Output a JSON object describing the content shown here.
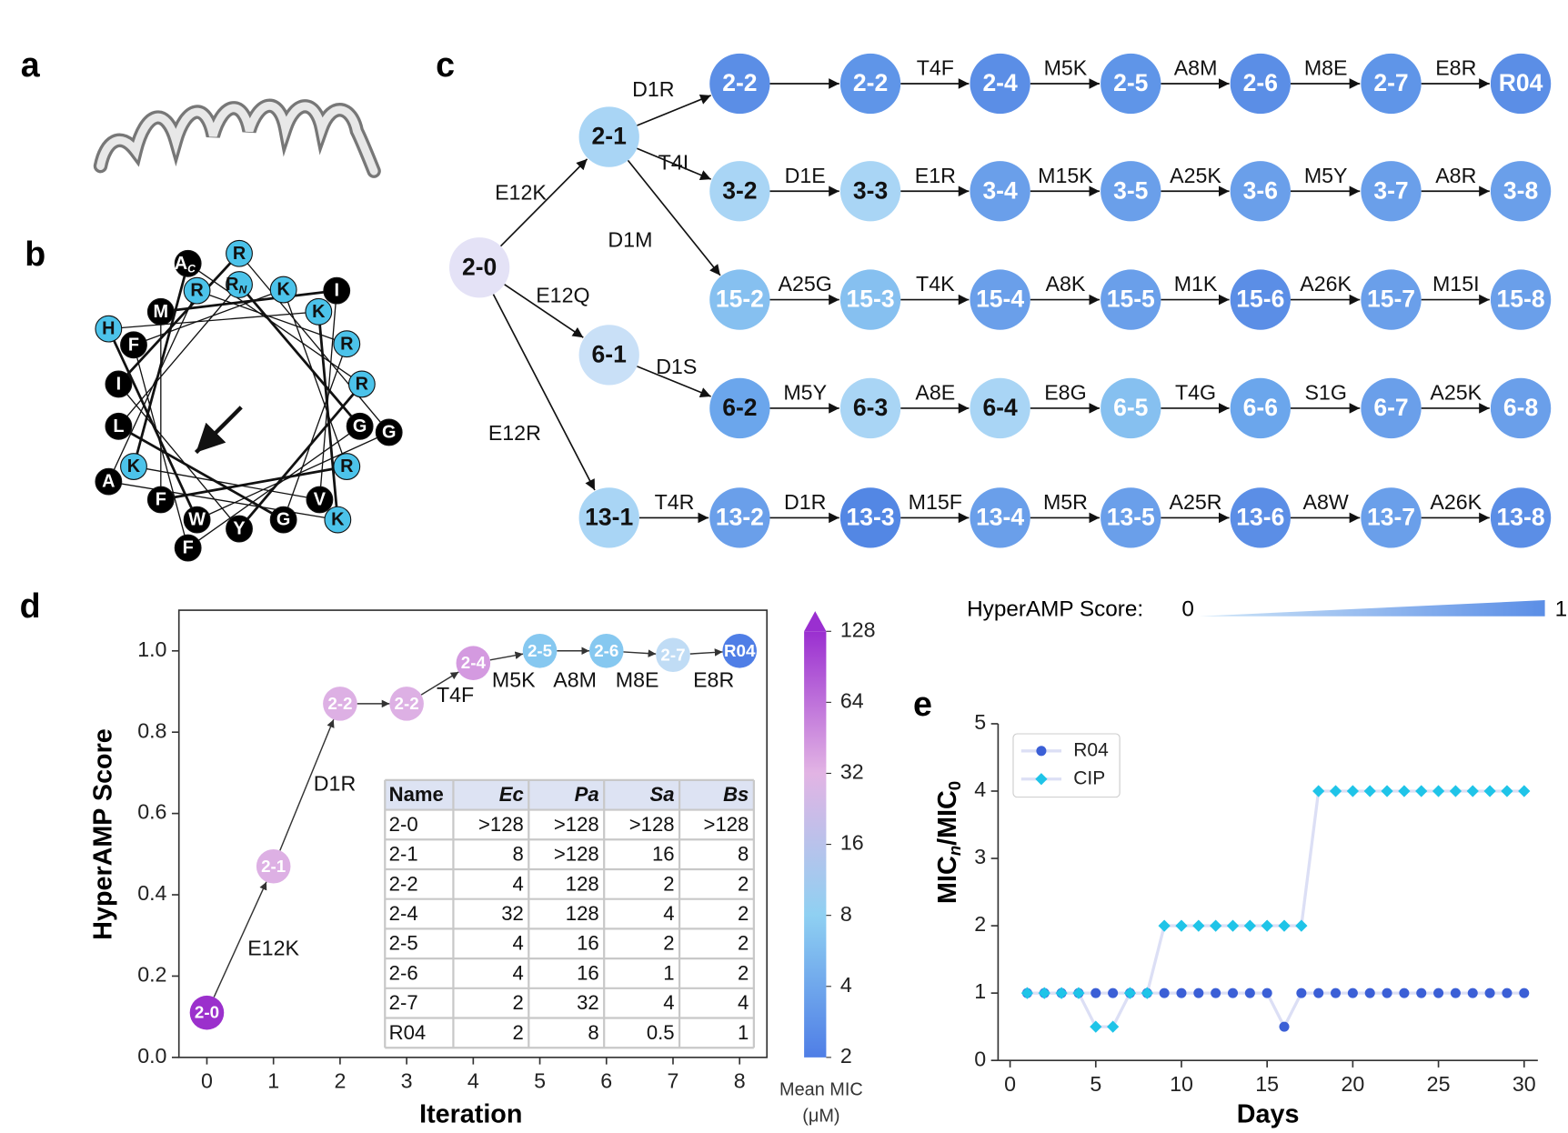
{
  "panel_labels": [
    "a",
    "b",
    "c",
    "d",
    "e"
  ],
  "helical_wheel": {
    "residues": [
      {
        "text": "A",
        "sub": "C",
        "color": "#000000"
      },
      {
        "text": "R",
        "color": "#4cc3ea"
      },
      {
        "text": "R",
        "sub": "N",
        "color": "#4cc3ea"
      },
      {
        "text": "R",
        "color": "#4cc3ea"
      },
      {
        "text": "K",
        "color": "#4cc3ea"
      },
      {
        "text": "I",
        "color": "#000000"
      },
      {
        "text": "M",
        "color": "#000000"
      },
      {
        "text": "K",
        "color": "#4cc3ea"
      },
      {
        "text": "H",
        "color": "#4cc3ea"
      },
      {
        "text": "F",
        "color": "#000000"
      },
      {
        "text": "R",
        "color": "#4cc3ea"
      },
      {
        "text": "R",
        "color": "#4cc3ea"
      },
      {
        "text": "I",
        "color": "#000000"
      },
      {
        "text": "L",
        "color": "#000000"
      },
      {
        "text": "G",
        "color": "#000000"
      },
      {
        "text": "G",
        "color": "#000000"
      },
      {
        "text": "R",
        "color": "#4cc3ea"
      },
      {
        "text": "K",
        "color": "#4cc3ea"
      },
      {
        "text": "A",
        "color": "#000000"
      },
      {
        "text": "F",
        "color": "#000000"
      },
      {
        "text": "V",
        "color": "#000000"
      },
      {
        "text": "K",
        "color": "#4cc3ea"
      },
      {
        "text": "W",
        "color": "#000000"
      },
      {
        "text": "Y",
        "color": "#000000"
      },
      {
        "text": "G",
        "color": "#000000"
      },
      {
        "text": "F",
        "color": "#000000"
      }
    ]
  },
  "lineage": {
    "nodes": [
      {
        "label": "2-0",
        "color": "#e4e2f6",
        "label_color": "#111111"
      },
      {
        "label": "2-1",
        "color": "#a9d5f5",
        "label_color": "#111111"
      },
      {
        "label": "6-1",
        "color": "#c9e0f7",
        "label_color": "#111111"
      },
      {
        "label": "13-1",
        "color": "#a9d5f5",
        "label_color": "#111111"
      },
      {
        "label": "2-2",
        "color": "#5b8ee6",
        "label_color": "#ffffff"
      },
      {
        "label": "2-2",
        "color": "#5f95e8",
        "label_color": "#ffffff"
      },
      {
        "label": "2-4",
        "color": "#5b8ee6",
        "label_color": "#ffffff"
      },
      {
        "label": "2-5",
        "color": "#5f95e8",
        "label_color": "#ffffff"
      },
      {
        "label": "2-6",
        "color": "#5b8ee6",
        "label_color": "#ffffff"
      },
      {
        "label": "2-7",
        "color": "#5f95e8",
        "label_color": "#ffffff"
      },
      {
        "label": "R04",
        "color": "#5b8ee6",
        "label_color": "#ffffff"
      },
      {
        "label": "3-2",
        "color": "#a9d5f5",
        "label_color": "#111111"
      },
      {
        "label": "3-3",
        "color": "#a9d5f5",
        "label_color": "#111111"
      },
      {
        "label": "3-4",
        "color": "#6a9fea",
        "label_color": "#ffffff"
      },
      {
        "label": "3-5",
        "color": "#6a9fea",
        "label_color": "#ffffff"
      },
      {
        "label": "3-6",
        "color": "#6a9fea",
        "label_color": "#ffffff"
      },
      {
        "label": "3-7",
        "color": "#6a9fea",
        "label_color": "#ffffff"
      },
      {
        "label": "3-8",
        "color": "#6a9fea",
        "label_color": "#ffffff"
      },
      {
        "label": "15-2",
        "color": "#86c0f0",
        "label_color": "#ffffff"
      },
      {
        "label": "15-3",
        "color": "#86c0f0",
        "label_color": "#ffffff"
      },
      {
        "label": "15-4",
        "color": "#6a9fea",
        "label_color": "#ffffff"
      },
      {
        "label": "15-5",
        "color": "#6a9fea",
        "label_color": "#ffffff"
      },
      {
        "label": "15-6",
        "color": "#5b8ee6",
        "label_color": "#ffffff"
      },
      {
        "label": "15-7",
        "color": "#6a9fea",
        "label_color": "#ffffff"
      },
      {
        "label": "15-8",
        "color": "#6a9fea",
        "label_color": "#ffffff"
      },
      {
        "label": "6-2",
        "color": "#6ba6ec",
        "label_color": "#111111"
      },
      {
        "label": "6-3",
        "color": "#a9d5f5",
        "label_color": "#111111"
      },
      {
        "label": "6-4",
        "color": "#a9d5f5",
        "label_color": "#111111"
      },
      {
        "label": "6-5",
        "color": "#86c0f0",
        "label_color": "#ffffff"
      },
      {
        "label": "6-6",
        "color": "#6ba6ec",
        "label_color": "#ffffff"
      },
      {
        "label": "6-7",
        "color": "#6a9fea",
        "label_color": "#ffffff"
      },
      {
        "label": "6-8",
        "color": "#6a9fea",
        "label_color": "#ffffff"
      },
      {
        "label": "13-2",
        "color": "#6a9fea",
        "label_color": "#ffffff"
      },
      {
        "label": "13-3",
        "color": "#5387e4",
        "label_color": "#ffffff"
      },
      {
        "label": "13-4",
        "color": "#6a9fea",
        "label_color": "#ffffff"
      },
      {
        "label": "13-5",
        "color": "#6a9fea",
        "label_color": "#ffffff"
      },
      {
        "label": "13-6",
        "color": "#5b8ee6",
        "label_color": "#ffffff"
      },
      {
        "label": "13-7",
        "color": "#6a9fea",
        "label_color": "#ffffff"
      },
      {
        "label": "13-8",
        "color": "#5b8ee6",
        "label_color": "#ffffff"
      }
    ],
    "mutations": [
      "E12K",
      "E12Q",
      "E12R",
      "D1R",
      "T4I",
      "D1M",
      "D1S",
      "T4F",
      "M5K",
      "A8M",
      "M8E",
      "E8R",
      "D1E",
      "E1R",
      "M15K",
      "A25K",
      "M5Y",
      "A8R",
      "A25G",
      "T4K",
      "A8K",
      "M1K",
      "A26K",
      "M15I",
      "M5Y",
      "A8E",
      "E8G",
      "T4G",
      "S1G",
      "A25K",
      "T4R",
      "D1R",
      "M15F",
      "M5R",
      "A25R",
      "A8W",
      "A26K"
    ],
    "score_scale": {
      "label": "HyperAMP Score:",
      "min": 0,
      "max": 1,
      "colors": [
        "#cfe6f8",
        "#5b8ee6"
      ]
    }
  },
  "table": {
    "header": [
      "Name",
      "Ec",
      "Pa",
      "Sa",
      "Bs"
    ],
    "rows": [
      [
        "2-0",
        ">128",
        ">128",
        ">128",
        ">128"
      ],
      [
        "2-1",
        "8",
        ">128",
        "16",
        "8"
      ],
      [
        "2-2",
        "4",
        "128",
        "2",
        "2"
      ],
      [
        "2-4",
        "32",
        "128",
        "4",
        "2"
      ],
      [
        "2-5",
        "4",
        "16",
        "2",
        "2"
      ],
      [
        "2-6",
        "4",
        "16",
        "1",
        "2"
      ],
      [
        "2-7",
        "2",
        "32",
        "4",
        "4"
      ],
      [
        "R04",
        "2",
        "8",
        "0.5",
        "1"
      ]
    ]
  },
  "chart_data": [
    {
      "type": "scatter",
      "xlabel": "Iteration",
      "ylabel": "HyperAMP Score",
      "x": [
        0,
        1,
        2,
        3,
        4,
        5,
        6,
        7,
        8
      ],
      "y": [
        0.11,
        0.47,
        0.87,
        0.87,
        0.97,
        1.0,
        1.0,
        0.99,
        1.0
      ],
      "point_labels": [
        "2-0",
        "2-1",
        "2-2",
        "2-2",
        "2-4",
        "2-5",
        "2-6",
        "2-7",
        "R04"
      ],
      "colors": [
        "#9b30cc",
        "#ddb0e4",
        "#ddb0e4",
        "#ddb0e4",
        "#d49ae0",
        "#86c8f0",
        "#86c8f0",
        "#c0dcf5",
        "#4f7ee6"
      ],
      "annotations": [
        "E12K",
        "D1R",
        "T4F",
        "M5K",
        "A8M",
        "M8E",
        "E8R"
      ],
      "xlim": [
        -0.42,
        8.41
      ],
      "ylim": [
        0,
        1.1
      ],
      "xticks": [
        0,
        1,
        2,
        3,
        4,
        5,
        6,
        7,
        8
      ],
      "yticks": [
        {
          "value": 0,
          "label": "0.0"
        },
        0.2,
        0.4,
        0.6,
        0.8,
        {
          "value": 1,
          "label": "1.0"
        }
      ],
      "colorbar": {
        "label": [
          "Mean MIC",
          "(μM)"
        ],
        "log": true,
        "lim": [
          2,
          128
        ],
        "ticks": [
          2,
          4,
          8,
          16,
          32,
          64,
          128
        ],
        "colors": [
          "#4f7ee6",
          "#8fd0f2",
          "#e2b4e4",
          "#9a2fd0"
        ]
      }
    },
    {
      "type": "line",
      "xlabel": "Days",
      "ylabel": [
        "MIC",
        "n",
        "/MIC",
        "0"
      ],
      "x": [
        1,
        2,
        3,
        4,
        5,
        6,
        7,
        8,
        9,
        10,
        11,
        12,
        13,
        14,
        15,
        16,
        17,
        18,
        19,
        20,
        21,
        22,
        23,
        24,
        25,
        26,
        27,
        28,
        29,
        30
      ],
      "series": [
        {
          "name": "R04",
          "color": "#3b5fd6",
          "marker": "circle",
          "values": [
            1,
            1,
            1,
            1,
            1,
            1,
            1,
            1,
            1,
            1,
            1,
            1,
            1,
            1,
            1,
            0.5,
            1,
            1,
            1,
            1,
            1,
            1,
            1,
            1,
            1,
            1,
            1,
            1,
            1,
            1
          ]
        },
        {
          "name": "CIP",
          "color": "#1fc4e8",
          "marker": "diamond",
          "values": [
            1,
            1,
            1,
            1,
            0.5,
            0.5,
            1,
            1,
            2,
            2,
            2,
            2,
            2,
            2,
            2,
            2,
            2,
            4,
            4,
            4,
            4,
            4,
            4,
            4,
            4,
            4,
            4,
            4,
            4,
            4
          ]
        }
      ],
      "line_color": "#dcdff5",
      "legend": "upper left",
      "xlim": [
        -0.7,
        30.8
      ],
      "ylim": [
        0,
        5
      ],
      "xticks": [
        0,
        5,
        10,
        15,
        20,
        25,
        30
      ],
      "yticks": [
        0,
        1,
        2,
        3,
        4,
        5
      ]
    }
  ]
}
